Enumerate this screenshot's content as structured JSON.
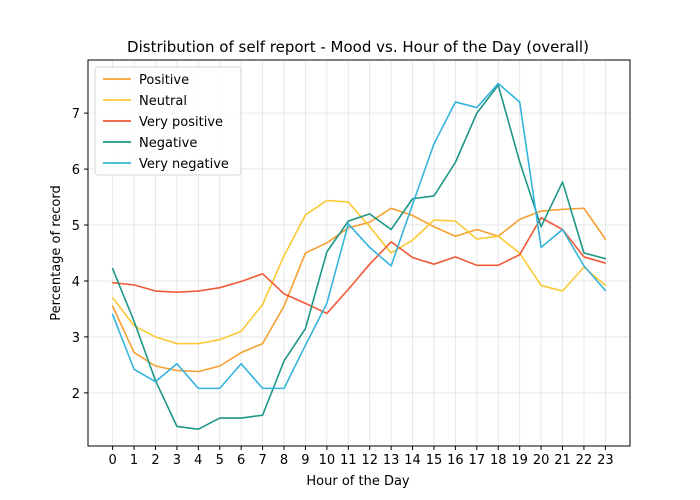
{
  "chart_data": {
    "type": "line",
    "title": "Distribution of self report - Mood vs. Hour of the Day (overall)",
    "xlabel": "Hour of the Day",
    "ylabel": "Percentage of record",
    "x": [
      0,
      1,
      2,
      3,
      4,
      5,
      6,
      7,
      8,
      9,
      10,
      11,
      12,
      13,
      14,
      15,
      16,
      17,
      18,
      19,
      20,
      21,
      22,
      23
    ],
    "x_tick_labels": [
      "0",
      "1",
      "2",
      "3",
      "4",
      "5",
      "6",
      "7",
      "8",
      "9",
      "10",
      "11",
      "12",
      "13",
      "14",
      "15",
      "16",
      "17",
      "18",
      "19",
      "20",
      "21",
      "22",
      "23"
    ],
    "xlim": [
      -1.15,
      24.15
    ],
    "ylim": [
      1.05,
      7.95
    ],
    "y_ticks": [
      2,
      3,
      4,
      5,
      6,
      7
    ],
    "y_tick_labels": [
      "2",
      "3",
      "4",
      "5",
      "6",
      "7"
    ],
    "grid": true,
    "legend_position": "upper-left",
    "series": [
      {
        "name": "Positive",
        "color": "#f5a031",
        "values": [
          3.55,
          2.72,
          2.48,
          2.4,
          2.38,
          2.48,
          2.72,
          2.88,
          3.55,
          4.5,
          4.68,
          4.95,
          5.05,
          5.3,
          5.17,
          4.97,
          4.8,
          4.92,
          4.8,
          5.1,
          5.25,
          5.28,
          5.3,
          4.75
        ]
      },
      {
        "name": "Neutral",
        "color": "#fbc934",
        "values": [
          3.7,
          3.2,
          3.0,
          2.88,
          2.88,
          2.95,
          3.1,
          3.58,
          4.45,
          5.18,
          5.44,
          5.41,
          4.97,
          4.5,
          4.73,
          5.09,
          5.07,
          4.75,
          4.8,
          4.5,
          3.92,
          3.82,
          4.25,
          3.92
        ]
      },
      {
        "name": "Very positive",
        "color": "#f15a37",
        "values": [
          3.97,
          3.93,
          3.82,
          3.8,
          3.82,
          3.88,
          3.99,
          4.13,
          3.77,
          3.6,
          3.42,
          3.85,
          4.3,
          4.7,
          4.42,
          4.3,
          4.43,
          4.28,
          4.28,
          4.47,
          5.13,
          4.92,
          4.43,
          4.32
        ]
      },
      {
        "name": "Negative",
        "color": "#1e9688",
        "values": [
          4.22,
          3.28,
          2.22,
          1.4,
          1.35,
          1.55,
          1.55,
          1.6,
          2.57,
          3.15,
          4.52,
          5.07,
          5.2,
          4.92,
          5.47,
          5.52,
          6.12,
          7.0,
          7.5,
          6.13,
          4.97,
          5.77,
          4.5,
          4.4
        ]
      },
      {
        "name": "Very negative",
        "color": "#34b4dc",
        "values": [
          3.4,
          2.42,
          2.2,
          2.52,
          2.08,
          2.08,
          2.52,
          2.08,
          2.08,
          2.85,
          3.6,
          5.02,
          4.6,
          4.27,
          5.37,
          6.45,
          7.2,
          7.1,
          7.53,
          7.2,
          4.6,
          4.92,
          4.27,
          3.83
        ]
      }
    ]
  }
}
